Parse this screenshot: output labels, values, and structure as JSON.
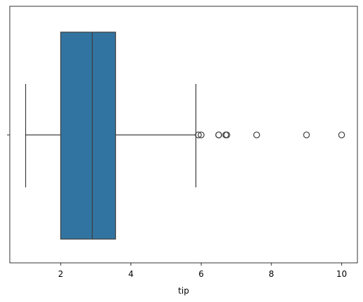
{
  "chart_data": {
    "type": "box",
    "orientation": "horizontal",
    "xlabel": "tip",
    "color": "#3274a1",
    "whislo": 1.0,
    "q1": 2.0,
    "median": 2.9,
    "q3": 3.5625,
    "whishi": 5.85,
    "fliers": [
      5.92,
      6.0,
      6.5,
      6.5,
      6.7,
      6.73,
      7.58,
      9.0,
      10.0
    ],
    "xlim": [
      0.55,
      10.45
    ],
    "xticks": [
      2,
      4,
      6,
      8,
      10
    ]
  }
}
